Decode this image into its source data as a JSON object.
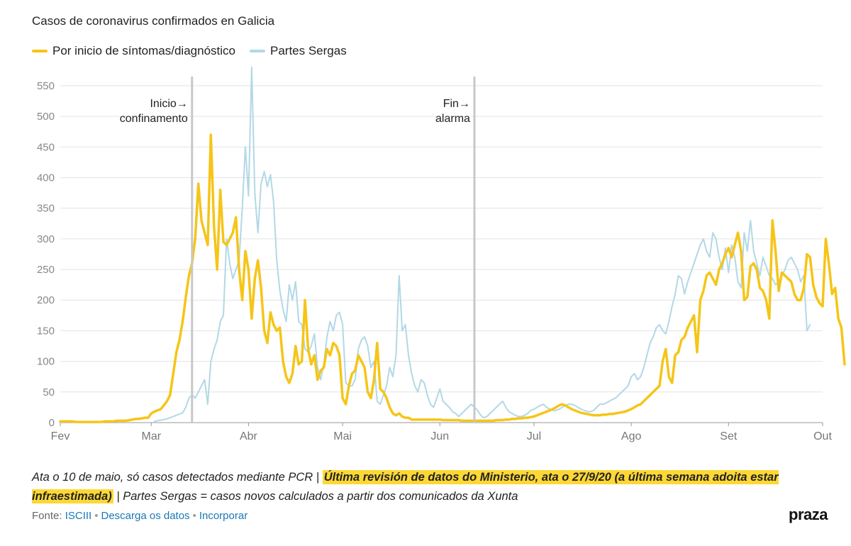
{
  "title": "Casos de coronavirus confirmados en Galicia",
  "legend": [
    {
      "label": "Por inicio de síntomas/diagnóstico",
      "color": "#f5c518"
    },
    {
      "label": "Partes Sergas",
      "color": "#b2d8e6"
    }
  ],
  "note": {
    "part1": "Ata o 10 de maio, só casos detectados mediante PCR | ",
    "highlight": "Última revisión de datos do Ministerio, ata o 27/9/20 (a última semana adoita estar infraestimada)",
    "part2": " | Partes Sergas = casos novos calculados a partir dos comunicados da Xunta"
  },
  "footer": {
    "prefix": "Fonte: ",
    "source": "ISCIII",
    "download": "Descarga os datos",
    "embed": "Incorporar"
  },
  "brand": "praza",
  "chart_data": {
    "type": "line",
    "x_ticks": [
      {
        "label": "Fev",
        "day": 0
      },
      {
        "label": "Mar",
        "day": 29
      },
      {
        "label": "Abr",
        "day": 60
      },
      {
        "label": "Mai",
        "day": 90
      },
      {
        "label": "Jun",
        "day": 121
      },
      {
        "label": "Jul",
        "day": 151
      },
      {
        "label": "Ago",
        "day": 182
      },
      {
        "label": "Set",
        "day": 213
      },
      {
        "label": "Out",
        "day": 243
      }
    ],
    "xlim": [
      0,
      243
    ],
    "ylim": [
      0,
      580
    ],
    "y_ticks": [
      0,
      50,
      100,
      150,
      200,
      250,
      300,
      350,
      400,
      450,
      500,
      550
    ],
    "grid": true,
    "legend_position": "top-left",
    "annotations": [
      {
        "label_line1": "Inicio→",
        "label_line2": "confinamento",
        "day": 42
      },
      {
        "label_line1": "Fin→",
        "label_line2": "alarma",
        "day": 132
      }
    ],
    "series": [
      {
        "name": "Por inicio de síntomas/diagnóstico",
        "color": "#f5c518",
        "start_day": 0,
        "values": [
          2,
          2,
          2,
          2,
          2,
          1,
          1,
          1,
          1,
          1,
          1,
          1,
          1,
          1,
          2,
          2,
          2,
          2,
          3,
          3,
          3,
          3,
          4,
          5,
          6,
          6,
          7,
          8,
          8,
          15,
          18,
          20,
          22,
          28,
          35,
          45,
          80,
          115,
          135,
          165,
          205,
          240,
          260,
          300,
          390,
          330,
          310,
          290,
          470,
          320,
          250,
          380,
          295,
          290,
          300,
          310,
          335,
          250,
          200,
          280,
          250,
          170,
          235,
          265,
          220,
          150,
          130,
          180,
          160,
          150,
          155,
          100,
          75,
          65,
          80,
          125,
          95,
          100,
          200,
          120,
          95,
          110,
          70,
          85,
          90,
          120,
          110,
          130,
          125,
          110,
          40,
          30,
          60,
          80,
          85,
          110,
          100,
          90,
          50,
          40,
          70,
          130,
          55,
          50,
          40,
          25,
          15,
          12,
          15,
          10,
          8,
          8,
          5,
          5,
          5,
          5,
          5,
          5,
          5,
          5,
          5,
          5,
          4,
          4,
          4,
          4,
          4,
          4,
          3,
          3,
          3,
          3,
          3,
          3,
          3,
          3,
          3,
          3,
          3,
          4,
          4,
          4,
          5,
          5,
          6,
          6,
          7,
          7,
          8,
          8,
          9,
          10,
          12,
          14,
          16,
          18,
          20,
          22,
          25,
          28,
          30,
          28,
          25,
          22,
          20,
          18,
          16,
          15,
          14,
          13,
          12,
          12,
          12,
          13,
          13,
          14,
          14,
          15,
          16,
          17,
          18,
          20,
          22,
          25,
          28,
          30,
          35,
          40,
          45,
          50,
          55,
          60,
          100,
          120,
          75,
          65,
          110,
          115,
          135,
          140,
          155,
          165,
          175,
          115,
          200,
          215,
          240,
          245,
          235,
          225,
          250,
          260,
          275,
          285,
          270,
          290,
          310,
          280,
          200,
          205,
          255,
          260,
          250,
          220,
          215,
          200,
          170,
          330,
          280,
          215,
          245,
          240,
          235,
          230,
          210,
          200,
          200,
          220,
          275,
          270,
          225,
          205,
          195,
          190,
          300,
          260,
          210,
          220,
          170,
          155,
          95
        ]
      },
      {
        "name": "Partes Sergas",
        "color": "#b2d8e6",
        "start_day": 30,
        "values": [
          2,
          3,
          4,
          5,
          6,
          8,
          10,
          12,
          14,
          16,
          25,
          40,
          45,
          40,
          50,
          60,
          70,
          30,
          100,
          120,
          135,
          165,
          175,
          300,
          260,
          235,
          250,
          265,
          350,
          450,
          370,
          580,
          375,
          310,
          390,
          410,
          385,
          405,
          360,
          265,
          215,
          185,
          165,
          225,
          200,
          230,
          165,
          160,
          120,
          115,
          125,
          145,
          90,
          70,
          95,
          140,
          165,
          150,
          175,
          180,
          160,
          65,
          60,
          60,
          70,
          120,
          135,
          140,
          125,
          90,
          100,
          35,
          30,
          45,
          60,
          90,
          75,
          110,
          240,
          150,
          160,
          110,
          80,
          60,
          50,
          70,
          65,
          45,
          30,
          25,
          40,
          55,
          35,
          30,
          25,
          18,
          15,
          10,
          15,
          20,
          25,
          30,
          25,
          20,
          12,
          8,
          10,
          15,
          20,
          25,
          30,
          35,
          25,
          18,
          15,
          12,
          10,
          10,
          12,
          15,
          20,
          22,
          25,
          28,
          30,
          25,
          22,
          20,
          20,
          22,
          25,
          28,
          30,
          30,
          28,
          25,
          22,
          20,
          18,
          18,
          20,
          25,
          30,
          30,
          32,
          35,
          38,
          40,
          45,
          50,
          55,
          60,
          75,
          80,
          70,
          75,
          90,
          110,
          130,
          140,
          155,
          160,
          150,
          145,
          165,
          190,
          210,
          240,
          235,
          210,
          230,
          245,
          260,
          275,
          290,
          300,
          280,
          270,
          310,
          300,
          270,
          250,
          285,
          245,
          290,
          270,
          230,
          220,
          310,
          280,
          330,
          280,
          260,
          240,
          270,
          255,
          240,
          235,
          225,
          230,
          240,
          250,
          265,
          270,
          260,
          250,
          230,
          240,
          150,
          160
        ]
      }
    ]
  }
}
